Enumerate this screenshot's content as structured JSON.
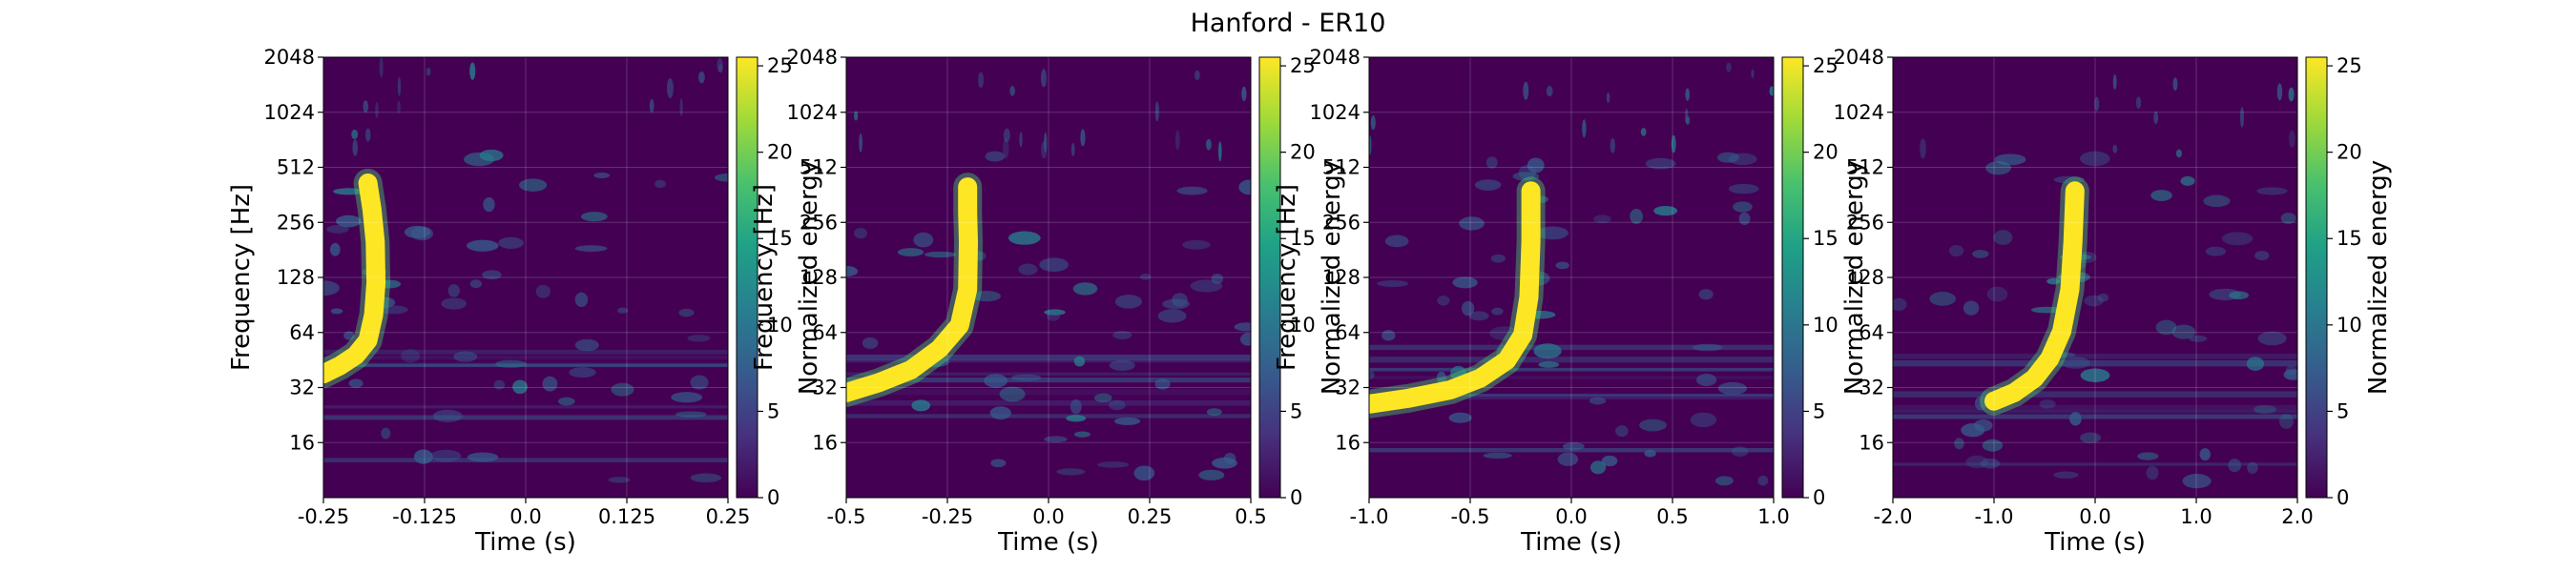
{
  "figure": {
    "title": "Hanford - ER10"
  },
  "colors": {
    "viridis": [
      "#440154",
      "#46327e",
      "#365c8d",
      "#277f8e",
      "#1fa187",
      "#4ac16d",
      "#a0da39",
      "#fde725"
    ],
    "background": "#440154",
    "signal": "#fde725"
  },
  "chart_data": [
    {
      "type": "heatmap",
      "title": "",
      "xlabel": "Time (s)",
      "ylabel": "Frequency [Hz]",
      "yscale": "log2",
      "xlim": [
        -0.25,
        0.25
      ],
      "ylim": [
        8,
        2048
      ],
      "x_ticks": [
        -0.25,
        -0.125,
        0.0,
        0.125,
        0.25
      ],
      "x_tick_labels": [
        "-0.25",
        "-0.125",
        "0.0",
        "0.125",
        "0.25"
      ],
      "y_ticks": [
        16,
        32,
        64,
        128,
        256,
        512,
        1024,
        2048
      ],
      "y_tick_labels": [
        "16",
        "32",
        "64",
        "128",
        "256",
        "512",
        "1024",
        "2048"
      ],
      "grid": true,
      "colorbar": {
        "label": "Normalized energy",
        "ticks": [
          0,
          5,
          10,
          15,
          20,
          25
        ],
        "tick_labels": [
          "0",
          "5",
          "10",
          "15",
          "20",
          "25"
        ],
        "range": [
          0,
          25.5
        ]
      },
      "chirp": {
        "points": [
          [
            -0.25,
            38
          ],
          [
            -0.23,
            42
          ],
          [
            -0.21,
            48
          ],
          [
            -0.195,
            58
          ],
          [
            -0.188,
            80
          ],
          [
            -0.185,
            120
          ],
          [
            -0.186,
            200
          ],
          [
            -0.19,
            300
          ],
          [
            -0.195,
            420
          ]
        ],
        "merger_time": -0.195,
        "max_frequency": 420,
        "peak_energy": 25.5
      }
    },
    {
      "type": "heatmap",
      "title": "",
      "xlabel": "Time (s)",
      "ylabel": "Frequency [Hz]",
      "yscale": "log2",
      "xlim": [
        -0.5,
        0.5
      ],
      "ylim": [
        8,
        2048
      ],
      "x_ticks": [
        -0.5,
        -0.25,
        0.0,
        0.25,
        0.5
      ],
      "x_tick_labels": [
        "-0.5",
        "-0.25",
        "0.0",
        "0.25",
        "0.5"
      ],
      "y_ticks": [
        16,
        32,
        64,
        128,
        256,
        512,
        1024,
        2048
      ],
      "y_tick_labels": [
        "16",
        "32",
        "64",
        "128",
        "256",
        "512",
        "1024",
        "2048"
      ],
      "grid": true,
      "colorbar": {
        "label": "Normalized energy",
        "ticks": [
          0,
          5,
          10,
          15,
          20,
          25
        ],
        "tick_labels": [
          "0",
          "5",
          "10",
          "15",
          "20",
          "25"
        ],
        "range": [
          0,
          25.5
        ]
      },
      "chirp": {
        "points": [
          [
            -0.5,
            30
          ],
          [
            -0.42,
            34
          ],
          [
            -0.34,
            40
          ],
          [
            -0.27,
            52
          ],
          [
            -0.22,
            70
          ],
          [
            -0.2,
            110
          ],
          [
            -0.198,
            200
          ],
          [
            -0.2,
            290
          ],
          [
            -0.2,
            400
          ]
        ],
        "merger_time": -0.2,
        "max_frequency": 400,
        "peak_energy": 25.5
      }
    },
    {
      "type": "heatmap",
      "title": "",
      "xlabel": "Time (s)",
      "ylabel": "Frequency [Hz]",
      "yscale": "log2",
      "xlim": [
        -1.0,
        1.0
      ],
      "ylim": [
        8,
        2048
      ],
      "x_ticks": [
        -1.0,
        -0.5,
        0.0,
        0.5,
        1.0
      ],
      "x_tick_labels": [
        "-1.0",
        "-0.5",
        "0.0",
        "0.5",
        "1.0"
      ],
      "y_ticks": [
        16,
        32,
        64,
        128,
        256,
        512,
        1024,
        2048
      ],
      "y_tick_labels": [
        "16",
        "32",
        "64",
        "128",
        "256",
        "512",
        "1024",
        "2048"
      ],
      "grid": true,
      "colorbar": {
        "label": "Normalized energy",
        "ticks": [
          0,
          5,
          10,
          15,
          20,
          25
        ],
        "tick_labels": [
          "0",
          "5",
          "10",
          "15",
          "20",
          "25"
        ],
        "range": [
          0,
          25.5
        ]
      },
      "chirp": {
        "points": [
          [
            -1.0,
            26
          ],
          [
            -0.8,
            28
          ],
          [
            -0.6,
            31
          ],
          [
            -0.45,
            36
          ],
          [
            -0.32,
            45
          ],
          [
            -0.24,
            62
          ],
          [
            -0.21,
            100
          ],
          [
            -0.2,
            200
          ],
          [
            -0.2,
            380
          ]
        ],
        "merger_time": -0.2,
        "max_frequency": 380,
        "peak_energy": 25.5
      }
    },
    {
      "type": "heatmap",
      "title": "",
      "xlabel": "Time (s)",
      "ylabel": "",
      "yscale": "log2",
      "xlim": [
        -2.0,
        2.0
      ],
      "ylim": [
        8,
        2048
      ],
      "x_ticks": [
        -2.0,
        -1.0,
        0.0,
        1.0,
        2.0
      ],
      "x_tick_labels": [
        "-2.0",
        "-1.0",
        "0.0",
        "1.0",
        "2.0"
      ],
      "y_ticks": [
        16,
        32,
        64,
        128,
        256,
        512,
        1024,
        2048
      ],
      "y_tick_labels": [
        "16",
        "32",
        "64",
        "128",
        "256",
        "512",
        "1024",
        "2048"
      ],
      "grid": true,
      "colorbar": {
        "label": "Normalized energy",
        "ticks": [
          0,
          5,
          10,
          15,
          20,
          25
        ],
        "tick_labels": [
          "0",
          "5",
          "10",
          "15",
          "20",
          "25"
        ],
        "range": [
          0,
          25.5
        ]
      },
      "chirp": {
        "points": [
          [
            -1.0,
            27
          ],
          [
            -0.8,
            30
          ],
          [
            -0.6,
            36
          ],
          [
            -0.45,
            46
          ],
          [
            -0.33,
            65
          ],
          [
            -0.25,
            110
          ],
          [
            -0.22,
            200
          ],
          [
            -0.2,
            380
          ]
        ],
        "merger_time": -0.2,
        "max_frequency": 380,
        "peak_energy": 25.5
      }
    }
  ]
}
